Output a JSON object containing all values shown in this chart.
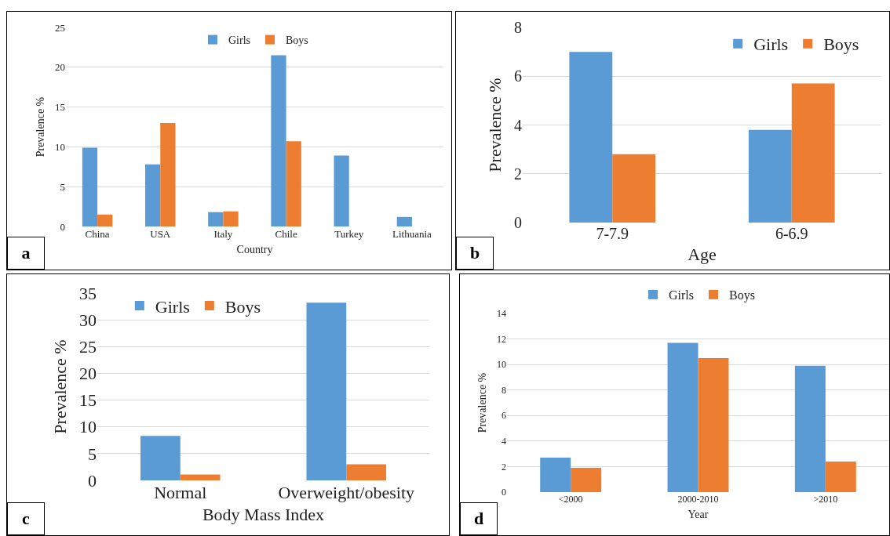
{
  "chart_data": [
    {
      "type": "bar",
      "xlabel": "Country",
      "ylabel": "Prevalence %",
      "categories": [
        "China",
        "USA",
        "Italy",
        "Chile",
        "Turkey",
        "Lithuania"
      ],
      "series": [
        {
          "name": "Girls",
          "color": "#5b9bd5",
          "values": [
            9.9,
            7.8,
            1.8,
            21.5,
            8.9,
            1.2
          ]
        },
        {
          "name": "Boys",
          "color": "#ed7d31",
          "values": [
            1.5,
            13.0,
            1.9,
            10.7,
            null,
            null
          ]
        }
      ],
      "ylim": [
        0,
        25
      ],
      "yticks": [
        0,
        5,
        10,
        15,
        20,
        25
      ],
      "grid": "y",
      "legend": "top",
      "annotations": [
        "a"
      ]
    },
    {
      "type": "bar",
      "xlabel": "Age",
      "ylabel": "Prevalence %",
      "categories": [
        "7-7.9",
        "6-6.9"
      ],
      "series": [
        {
          "name": "Girls",
          "color": "#5b9bd5",
          "values": [
            7.0,
            3.8
          ]
        },
        {
          "name": "Boys",
          "color": "#ed7d31",
          "values": [
            2.8,
            5.7
          ]
        }
      ],
      "ylim": [
        0,
        8
      ],
      "yticks": [
        0,
        2,
        4,
        6,
        8
      ],
      "grid": "y",
      "legend": "top right",
      "annotations": [
        "b"
      ]
    },
    {
      "type": "bar",
      "xlabel": "Body Mass Index",
      "ylabel": "Prevalence %",
      "categories": [
        "Normal",
        "Overweight/obesity"
      ],
      "series": [
        {
          "name": "Girls",
          "color": "#5b9bd5",
          "values": [
            8.3,
            33.2
          ]
        },
        {
          "name": "Boys",
          "color": "#ed7d31",
          "values": [
            1.1,
            3.0
          ]
        }
      ],
      "ylim": [
        0,
        35
      ],
      "yticks": [
        0,
        5,
        10,
        15,
        20,
        25,
        30,
        35
      ],
      "grid": "y",
      "legend": "top left",
      "annotations": [
        "c"
      ]
    },
    {
      "type": "bar",
      "xlabel": "Year",
      "ylabel": "Prevalence %",
      "categories": [
        "<2000",
        "2000-2010",
        ">2010"
      ],
      "series": [
        {
          "name": "Girls",
          "color": "#5b9bd5",
          "values": [
            2.7,
            11.7,
            9.9
          ]
        },
        {
          "name": "Boys",
          "color": "#ed7d31",
          "values": [
            1.9,
            10.5,
            2.4
          ]
        }
      ],
      "ylim": [
        0,
        14
      ],
      "yticks": [
        0,
        2,
        4,
        6,
        8,
        10,
        12,
        14
      ],
      "grid": "y",
      "legend": "top",
      "annotations": [
        "d"
      ]
    }
  ]
}
